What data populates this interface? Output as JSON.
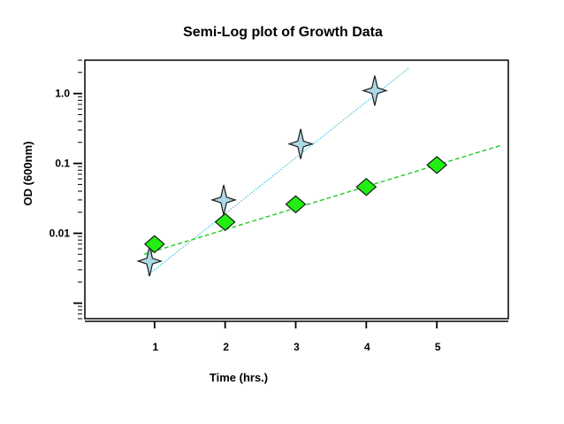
{
  "chart_data": {
    "type": "scatter",
    "title": "Semi-Log plot of Growth Data",
    "xlabel": "Time (hrs.)",
    "ylabel": "OD (600nm)",
    "y_scale": "log",
    "x_ticks": [
      "1",
      "2",
      "3",
      "4",
      "5"
    ],
    "y_ticks": [
      "0.01",
      "0.1",
      "1.0"
    ],
    "xlim": [
      0,
      6
    ],
    "ylim": [
      0.0006,
      3.0
    ],
    "grid": false,
    "legend": "none",
    "series": [
      {
        "marker": "star",
        "marker_color": "#add8e6",
        "fit_line": "dotted",
        "fit_color": "#40c8e0",
        "fit_x": [
          0.9,
          4.6
        ],
        "fit_y": [
          0.0025,
          2.3
        ],
        "x": [
          0.93,
          1.98,
          3.07,
          4.12
        ],
        "y": [
          0.004,
          0.03,
          0.19,
          1.1
        ]
      },
      {
        "marker": "diamond",
        "marker_color": "#22ee11",
        "fit_line": "dashed",
        "fit_color": "#22cc22",
        "fit_x": [
          0.85,
          5.9
        ],
        "fit_y": [
          0.005,
          0.18
        ],
        "x": [
          1.0,
          2.0,
          3.0,
          4.0,
          5.0
        ],
        "y": [
          0.007,
          0.0145,
          0.026,
          0.046,
          0.095
        ]
      }
    ]
  }
}
